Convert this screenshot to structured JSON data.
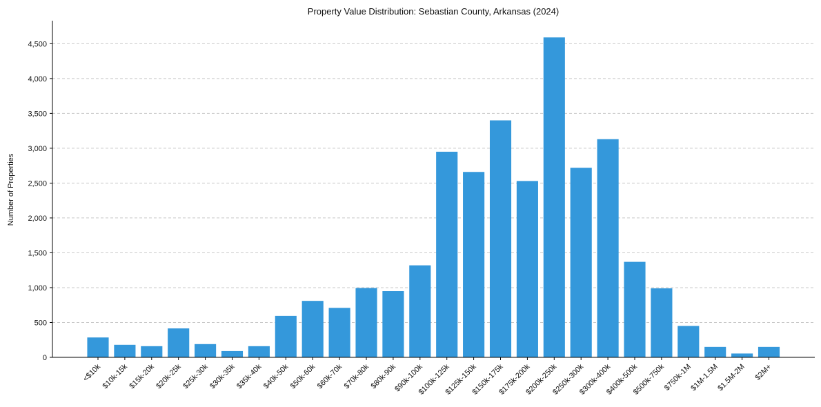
{
  "chart_data": {
    "type": "bar",
    "title": "Property Value Distribution: Sebastian County, Arkansas (2024)",
    "xlabel": "",
    "ylabel": "Number of Properties",
    "ylim": [
      0,
      4830
    ],
    "yticks": [
      0,
      500,
      1000,
      1500,
      2000,
      2500,
      3000,
      3500,
      4000,
      4500
    ],
    "ytick_labels": [
      "0",
      "500",
      "1,000",
      "1,500",
      "2,000",
      "2,500",
      "3,000",
      "3,500",
      "4,000",
      "4,500"
    ],
    "grid": "horizontal-dashed",
    "bar_color": "#3498db",
    "categories": [
      "<$10k",
      "$10k-15k",
      "$15k-20k",
      "$20k-25k",
      "$25k-30k",
      "$30k-35k",
      "$35k-40k",
      "$40k-50k",
      "$50k-60k",
      "$60k-70k",
      "$70k-80k",
      "$80k-90k",
      "$90k-100k",
      "$100k-125k",
      "$125k-150k",
      "$150k-175k",
      "$175k-200k",
      "$200k-250k",
      "$250k-300k",
      "$300k-400k",
      "$400k-500k",
      "$500k-750k",
      "$750k-1M",
      "$1M-1.5M",
      "$1.5M-2M",
      "$2M+"
    ],
    "values": [
      285,
      180,
      160,
      415,
      190,
      90,
      160,
      595,
      810,
      710,
      995,
      950,
      1320,
      2950,
      2660,
      3400,
      2530,
      4590,
      2720,
      3130,
      1370,
      990,
      450,
      150,
      55,
      150
    ]
  }
}
